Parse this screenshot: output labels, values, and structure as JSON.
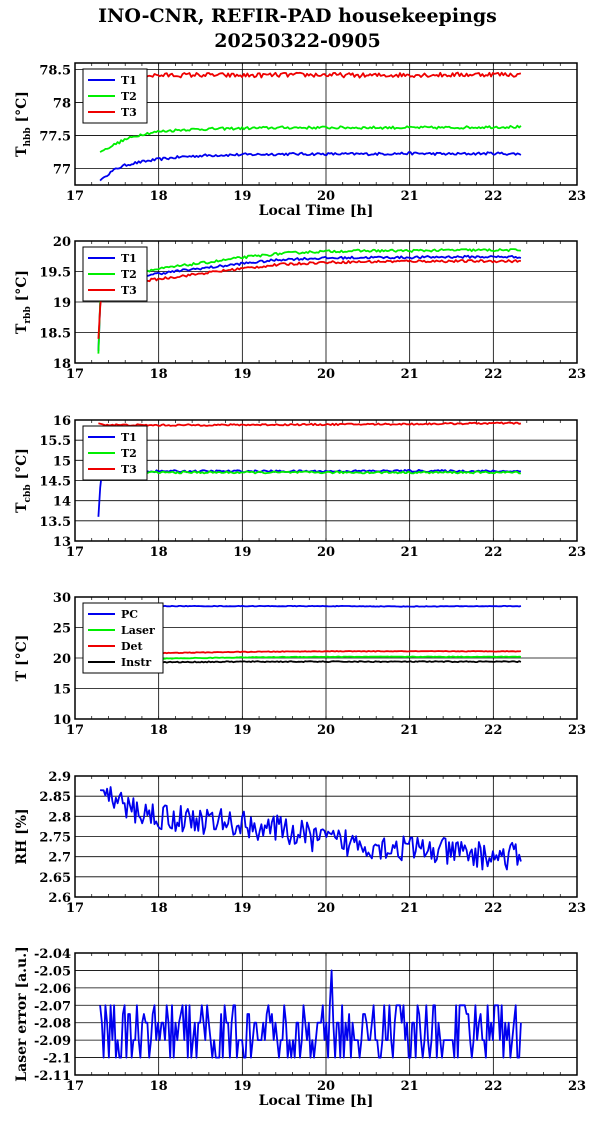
{
  "title": {
    "line1": "INO-CNR, REFIR-PAD housekeepings",
    "line2": "20250322-0905"
  },
  "colors": {
    "blue": "#0000ee",
    "green": "#00ee00",
    "red": "#ee0000",
    "black": "#000000"
  },
  "chart_data": [
    {
      "type": "line",
      "id": "hbb",
      "ylabel": "T",
      "ylabel_sub": "hbb",
      "ylabel_unit": "[°C]",
      "xlabel": "Local Time [h]",
      "xlim": [
        17,
        23
      ],
      "ylim": [
        76.75,
        78.6
      ],
      "yticks": [
        "78.5",
        "78",
        "77.5",
        "77"
      ],
      "ytick_values": [
        78.5,
        78,
        77.5,
        77
      ],
      "xticks": [
        "17",
        "18",
        "19",
        "20",
        "21",
        "22",
        "23"
      ],
      "grid": true,
      "legend_position": "top-left",
      "series": [
        {
          "name": "T1",
          "color": "#0000ee",
          "x": [
            17.3,
            17.4,
            17.5,
            17.6,
            17.7,
            17.8,
            18.0,
            18.3,
            18.6,
            19.0,
            19.5,
            20.0,
            20.5,
            21.0,
            21.5,
            22.0,
            22.33
          ],
          "y": [
            76.82,
            76.92,
            77.0,
            77.05,
            77.08,
            77.1,
            77.14,
            77.18,
            77.2,
            77.21,
            77.22,
            77.22,
            77.22,
            77.23,
            77.22,
            77.23,
            77.22
          ]
        },
        {
          "name": "T2",
          "color": "#00ee00",
          "x": [
            17.3,
            17.4,
            17.5,
            17.6,
            17.7,
            17.8,
            18.0,
            18.3,
            18.6,
            19.0,
            19.5,
            20.0,
            20.5,
            21.0,
            21.5,
            22.0,
            22.33
          ],
          "y": [
            77.25,
            77.32,
            77.38,
            77.44,
            77.48,
            77.52,
            77.56,
            77.59,
            77.6,
            77.61,
            77.62,
            77.62,
            77.62,
            77.62,
            77.62,
            77.63,
            77.63
          ]
        },
        {
          "name": "T3",
          "color": "#ee0000",
          "x": [
            17.3,
            17.8,
            18.5,
            19.0,
            19.5,
            20.0,
            20.5,
            21.0,
            21.5,
            22.0,
            22.33
          ],
          "y": [
            78.4,
            78.41,
            78.42,
            78.41,
            78.42,
            78.42,
            78.41,
            78.42,
            78.42,
            78.43,
            78.42
          ]
        }
      ],
      "noise": [
        0.02,
        0.02,
        0.035
      ]
    },
    {
      "type": "line",
      "id": "rbb",
      "ylabel": "T",
      "ylabel_sub": "rbb",
      "ylabel_unit": "[°C]",
      "xlabel": "",
      "xlim": [
        17,
        23
      ],
      "ylim": [
        18,
        20
      ],
      "yticks": [
        "20",
        "19.5",
        "19",
        "18.5",
        "18"
      ],
      "ytick_values": [
        20,
        19.5,
        19,
        18.5,
        18
      ],
      "xticks": [
        "17",
        "18",
        "19",
        "20",
        "21",
        "22",
        "23"
      ],
      "grid": true,
      "legend_position": "top-left",
      "series": [
        {
          "name": "T1",
          "color": "#0000ee",
          "x": [
            17.28,
            17.3,
            17.32,
            17.6,
            17.9,
            18.3,
            18.7,
            19.0,
            19.5,
            20.0,
            20.5,
            21.0,
            21.5,
            22.0,
            22.33
          ],
          "y": [
            18.2,
            18.95,
            19.3,
            19.38,
            19.45,
            19.52,
            19.58,
            19.63,
            19.7,
            19.72,
            19.73,
            19.73,
            19.74,
            19.74,
            19.74
          ]
        },
        {
          "name": "T2",
          "color": "#00ee00",
          "x": [
            17.28,
            17.3,
            17.32,
            17.6,
            17.9,
            18.3,
            18.7,
            19.0,
            19.5,
            20.0,
            20.5,
            21.0,
            21.5,
            22.0,
            22.33
          ],
          "y": [
            18.15,
            19.0,
            19.38,
            19.45,
            19.52,
            19.6,
            19.67,
            19.73,
            19.8,
            19.83,
            19.84,
            19.84,
            19.85,
            19.85,
            19.85
          ]
        },
        {
          "name": "T3",
          "color": "#ee0000",
          "x": [
            17.28,
            17.3,
            17.32,
            17.6,
            17.9,
            18.3,
            18.7,
            19.0,
            19.5,
            20.0,
            20.5,
            21.0,
            21.5,
            22.0,
            22.33
          ],
          "y": [
            18.4,
            18.9,
            19.22,
            19.3,
            19.36,
            19.43,
            19.5,
            19.55,
            19.62,
            19.65,
            19.66,
            19.67,
            19.67,
            19.67,
            19.67
          ]
        }
      ],
      "noise": [
        0.02,
        0.02,
        0.02
      ]
    },
    {
      "type": "line",
      "id": "cbb",
      "ylabel": "T",
      "ylabel_sub": "cbb",
      "ylabel_unit": "[°C]",
      "xlabel": "",
      "xlim": [
        17,
        23
      ],
      "ylim": [
        13,
        16
      ],
      "yticks": [
        "16",
        "15.5",
        "15",
        "14.5",
        "14",
        "13.5",
        "13"
      ],
      "ytick_values": [
        16,
        15.5,
        15,
        14.5,
        14,
        13.5,
        13
      ],
      "xticks": [
        "17",
        "18",
        "19",
        "20",
        "21",
        "22",
        "23"
      ],
      "grid": true,
      "legend_position": "top-left",
      "series": [
        {
          "name": "T1",
          "color": "#0000ee",
          "x": [
            17.28,
            17.3,
            17.32,
            17.5,
            18.0,
            19.0,
            20.0,
            21.0,
            22.0,
            22.33
          ],
          "y": [
            13.6,
            14.3,
            14.7,
            14.72,
            14.73,
            14.73,
            14.73,
            14.74,
            14.73,
            14.73
          ]
        },
        {
          "name": "T2",
          "color": "#00ee00",
          "x": [
            17.28,
            17.3,
            17.32,
            17.5,
            18.0,
            19.0,
            20.0,
            21.0,
            22.0,
            22.33
          ],
          "y": [
            14.5,
            14.6,
            14.68,
            14.7,
            14.7,
            14.7,
            14.7,
            14.7,
            14.7,
            14.7
          ]
        },
        {
          "name": "T3",
          "color": "#ee0000",
          "x": [
            17.28,
            17.35,
            18.0,
            19.0,
            20.0,
            21.0,
            22.0,
            22.33
          ],
          "y": [
            15.92,
            15.88,
            15.87,
            15.88,
            15.89,
            15.9,
            15.92,
            15.92
          ]
        }
      ],
      "noise": [
        0.025,
        0.025,
        0.02
      ]
    },
    {
      "type": "line",
      "id": "temps",
      "ylabel": "T [°C]",
      "ylabel_sub": "",
      "ylabel_unit": "",
      "xlabel": "",
      "xlim": [
        17,
        23
      ],
      "ylim": [
        10,
        30
      ],
      "yticks": [
        "30",
        "25",
        "20",
        "15",
        "10"
      ],
      "ytick_values": [
        30,
        25,
        20,
        15,
        10
      ],
      "xticks": [
        "17",
        "18",
        "19",
        "20",
        "21",
        "22",
        "23"
      ],
      "grid": true,
      "legend_position": "top-left",
      "series": [
        {
          "name": "PC",
          "color": "#0000ee",
          "x": [
            17.3,
            18.0,
            19.0,
            20.0,
            21.0,
            22.0,
            22.33
          ],
          "y": [
            28.4,
            28.5,
            28.5,
            28.5,
            28.45,
            28.5,
            28.5
          ]
        },
        {
          "name": "Laser",
          "color": "#00ee00",
          "x": [
            17.3,
            18.0,
            19.0,
            20.0,
            21.0,
            22.0,
            22.33
          ],
          "y": [
            19.7,
            19.9,
            20.1,
            20.2,
            20.2,
            20.2,
            20.2
          ]
        },
        {
          "name": "Det",
          "color": "#ee0000",
          "x": [
            17.3,
            18.0,
            19.0,
            20.0,
            21.0,
            22.0,
            22.33
          ],
          "y": [
            20.6,
            20.8,
            21.0,
            21.1,
            21.1,
            21.1,
            21.1
          ]
        },
        {
          "name": "Instr",
          "color": "#000000",
          "x": [
            17.3,
            18.0,
            19.0,
            20.0,
            21.0,
            22.0,
            22.33
          ],
          "y": [
            19.2,
            19.3,
            19.4,
            19.4,
            19.4,
            19.4,
            19.4
          ]
        }
      ],
      "noise": [
        0.05,
        0.05,
        0.05,
        0.08
      ]
    },
    {
      "type": "line",
      "id": "rh",
      "ylabel": "RH [%]",
      "ylabel_sub": "",
      "ylabel_unit": "",
      "xlabel": "",
      "xlim": [
        17,
        23
      ],
      "ylim": [
        2.6,
        2.9
      ],
      "yticks": [
        "2.9",
        "2.85",
        "2.8",
        "2.75",
        "2.7",
        "2.65",
        "2.6"
      ],
      "ytick_values": [
        2.9,
        2.85,
        2.8,
        2.75,
        2.7,
        2.65,
        2.6
      ],
      "xticks": [
        "17",
        "18",
        "19",
        "20",
        "21",
        "22",
        "23"
      ],
      "grid": true,
      "legend_position": "none",
      "series": [
        {
          "name": "",
          "color": "#0000ee",
          "x": [
            17.3,
            17.5,
            17.8,
            18.0,
            18.5,
            19.0,
            19.5,
            20.0,
            20.5,
            21.0,
            21.5,
            22.0,
            22.33
          ],
          "y": [
            2.87,
            2.83,
            2.81,
            2.8,
            2.79,
            2.78,
            2.765,
            2.74,
            2.73,
            2.72,
            2.71,
            2.7,
            2.7
          ]
        }
      ],
      "noise": [
        0.035
      ]
    },
    {
      "type": "line",
      "id": "laser",
      "ylabel": "Laser error [a.u.]",
      "ylabel_sub": "",
      "ylabel_unit": "",
      "xlabel": "Local Time [h]",
      "xlim": [
        17,
        23
      ],
      "ylim": [
        -2.11,
        -2.04
      ],
      "yticks": [
        "-2.04",
        "-2.05",
        "-2.06",
        "-2.07",
        "-2.08",
        "-2.09",
        "-2.1",
        "-2.11"
      ],
      "ytick_values": [
        -2.04,
        -2.05,
        -2.06,
        -2.07,
        -2.08,
        -2.09,
        -2.1,
        -2.11
      ],
      "xticks": [
        "17",
        "18",
        "19",
        "20",
        "21",
        "22",
        "23"
      ],
      "grid": true,
      "legend_position": "none",
      "series": [
        {
          "name": "",
          "color": "#0000ee",
          "x": [
            17.3,
            18.0,
            19.0,
            20.0,
            21.0,
            22.0,
            22.33
          ],
          "y": [
            -2.075,
            -2.08,
            -2.08,
            -2.08,
            -2.08,
            -2.08,
            -2.075
          ]
        }
      ],
      "noise": [
        0.012
      ]
    }
  ]
}
